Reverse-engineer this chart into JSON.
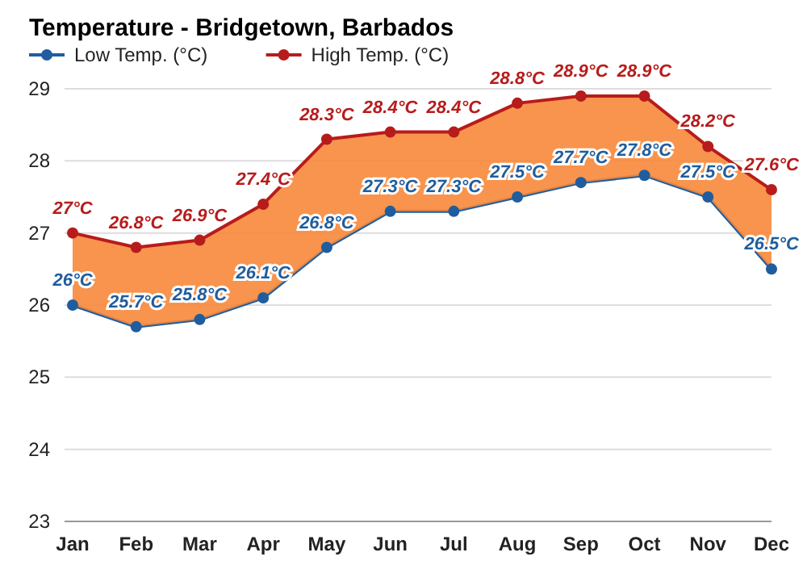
{
  "chart_data": {
    "type": "line",
    "title": "Temperature - Bridgetown, Barbados",
    "categories": [
      "Jan",
      "Feb",
      "Mar",
      "Apr",
      "May",
      "Jun",
      "Jul",
      "Aug",
      "Sep",
      "Oct",
      "Nov",
      "Dec"
    ],
    "series": [
      {
        "name": "Low Temp. (°C)",
        "color": "#1f5d9e",
        "values": [
          26,
          25.7,
          25.8,
          26.1,
          26.8,
          27.3,
          27.3,
          27.5,
          27.7,
          27.8,
          27.5,
          26.5
        ],
        "value_labels": [
          "26°C",
          "25.7°C",
          "25.8°C",
          "26.1°C",
          "26.8°C",
          "27.3°C",
          "27.3°C",
          "27.5°C",
          "27.7°C",
          "27.8°C",
          "27.5°C",
          "26.5°C"
        ]
      },
      {
        "name": "High Temp. (°C)",
        "color": "#b71c1c",
        "values": [
          27,
          26.8,
          26.9,
          27.4,
          28.3,
          28.4,
          28.4,
          28.8,
          28.9,
          28.9,
          28.2,
          27.6
        ],
        "lower": [
          26,
          25.7,
          25.8,
          26.1,
          26.8,
          27.3,
          27.3,
          27.5,
          27.7,
          27.8,
          27.5,
          26.5
        ],
        "upper": [
          27,
          26.8,
          26.9,
          27.4,
          28.3,
          28.4,
          28.4,
          28.8,
          28.9,
          28.9,
          28.2,
          27.6
        ],
        "value_labels": [
          "27°C",
          "26.8°C",
          "26.9°C",
          "27.4°C",
          "28.3°C",
          "28.4°C",
          "28.4°C",
          "28.8°C",
          "28.9°C",
          "28.9°C",
          "28.2°C",
          "27.6°C"
        ]
      }
    ],
    "ylim": [
      23,
      29
    ],
    "yticks": [
      23,
      24,
      25,
      26,
      27,
      28,
      29
    ],
    "grid": "y",
    "legend": "top left",
    "marker": "circle",
    "line_style": "solid"
  }
}
